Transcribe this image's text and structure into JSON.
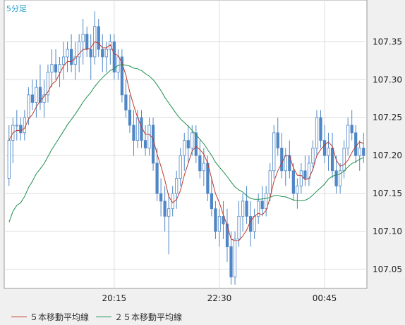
{
  "chart_data": {
    "type": "candlestick",
    "timeframe_label": "5分足",
    "ylim": [
      107.025,
      107.405
    ],
    "yticks": [
      "107.35",
      "107.30",
      "107.25",
      "107.20",
      "107.15",
      "107.10",
      "107.05"
    ],
    "xticks": [
      "20:15",
      "22:30",
      "00:45"
    ],
    "grid": true,
    "legend": [
      {
        "label": "５本移動平均線",
        "color": "#c0392b"
      },
      {
        "label": "２５本移動平均線",
        "color": "#1e8f4e"
      }
    ],
    "colors": {
      "up": "#ffffff",
      "down": "#4f86c6",
      "outline": "#4f86c6"
    },
    "candles": [
      [
        107.17,
        107.24,
        107.16,
        107.22
      ],
      [
        107.22,
        107.25,
        107.19,
        107.24
      ],
      [
        107.24,
        107.26,
        107.22,
        107.24
      ],
      [
        107.24,
        107.25,
        107.22,
        107.23
      ],
      [
        107.23,
        107.26,
        107.22,
        107.25
      ],
      [
        107.25,
        107.29,
        107.24,
        107.28
      ],
      [
        107.28,
        107.3,
        107.26,
        107.27
      ],
      [
        107.27,
        107.3,
        107.25,
        107.29
      ],
      [
        107.29,
        107.32,
        107.26,
        107.27
      ],
      [
        107.27,
        107.3,
        107.25,
        107.28
      ],
      [
        107.28,
        107.32,
        107.27,
        107.31
      ],
      [
        107.31,
        107.34,
        107.29,
        107.32
      ],
      [
        107.32,
        107.34,
        107.3,
        107.31
      ],
      [
        107.31,
        107.33,
        107.29,
        107.32
      ],
      [
        107.32,
        107.35,
        107.3,
        107.33
      ],
      [
        107.33,
        107.35,
        107.31,
        107.34
      ],
      [
        107.34,
        107.36,
        107.31,
        107.32
      ],
      [
        107.32,
        107.35,
        107.3,
        107.33
      ],
      [
        107.33,
        107.36,
        107.31,
        107.35
      ],
      [
        107.35,
        107.38,
        107.32,
        107.36
      ],
      [
        107.36,
        107.37,
        107.33,
        107.34
      ],
      [
        107.34,
        107.36,
        107.3,
        107.33
      ],
      [
        107.33,
        107.39,
        107.32,
        107.37
      ],
      [
        107.37,
        107.38,
        107.33,
        107.34
      ],
      [
        107.34,
        107.36,
        107.31,
        107.33
      ],
      [
        107.33,
        107.35,
        107.31,
        107.34
      ],
      [
        107.34,
        107.36,
        107.32,
        107.35
      ],
      [
        107.35,
        107.36,
        107.3,
        107.31
      ],
      [
        107.31,
        107.34,
        107.3,
        107.33
      ],
      [
        107.33,
        107.34,
        107.27,
        107.28
      ],
      [
        107.28,
        107.3,
        107.25,
        107.26
      ],
      [
        107.26,
        107.28,
        107.23,
        107.24
      ],
      [
        107.24,
        107.26,
        107.2,
        107.22
      ],
      [
        107.22,
        107.26,
        107.21,
        107.25
      ],
      [
        107.25,
        107.26,
        107.21,
        107.22
      ],
      [
        107.22,
        107.24,
        107.2,
        107.21
      ],
      [
        107.21,
        107.25,
        107.2,
        107.24
      ],
      [
        107.24,
        107.25,
        107.18,
        107.19
      ],
      [
        107.19,
        107.21,
        107.14,
        107.15
      ],
      [
        107.15,
        107.17,
        107.12,
        107.14
      ],
      [
        107.14,
        107.16,
        107.1,
        107.12
      ],
      [
        107.12,
        107.15,
        107.07,
        107.13
      ],
      [
        107.13,
        107.16,
        107.12,
        107.15
      ],
      [
        107.15,
        107.18,
        107.13,
        107.17
      ],
      [
        107.17,
        107.21,
        107.16,
        107.2
      ],
      [
        107.2,
        107.23,
        107.18,
        107.22
      ],
      [
        107.22,
        107.24,
        107.19,
        107.21
      ],
      [
        107.21,
        107.24,
        107.2,
        107.23
      ],
      [
        107.23,
        107.24,
        107.19,
        107.2
      ],
      [
        107.2,
        107.22,
        107.17,
        107.18
      ],
      [
        107.18,
        107.21,
        107.16,
        107.19
      ],
      [
        107.19,
        107.2,
        107.14,
        107.15
      ],
      [
        107.15,
        107.17,
        107.12,
        107.13
      ],
      [
        107.13,
        107.14,
        107.09,
        107.1
      ],
      [
        107.1,
        107.13,
        107.08,
        107.12
      ],
      [
        107.12,
        107.14,
        107.09,
        107.11
      ],
      [
        107.11,
        107.13,
        107.06,
        107.08
      ],
      [
        107.08,
        107.1,
        107.03,
        107.04
      ],
      [
        107.04,
        107.1,
        107.03,
        107.09
      ],
      [
        107.09,
        107.14,
        107.08,
        107.12
      ],
      [
        107.12,
        107.15,
        107.1,
        107.14
      ],
      [
        107.14,
        107.16,
        107.11,
        107.12
      ],
      [
        107.12,
        107.14,
        107.08,
        107.1
      ],
      [
        107.1,
        107.13,
        107.09,
        107.12
      ],
      [
        107.12,
        107.15,
        107.11,
        107.14
      ],
      [
        107.14,
        107.16,
        107.12,
        107.13
      ],
      [
        107.13,
        107.16,
        107.12,
        107.15
      ],
      [
        107.15,
        107.19,
        107.14,
        107.18
      ],
      [
        107.18,
        107.24,
        107.17,
        107.23
      ],
      [
        107.23,
        107.25,
        107.2,
        107.21
      ],
      [
        107.21,
        107.23,
        107.17,
        107.18
      ],
      [
        107.18,
        107.21,
        107.16,
        107.2
      ],
      [
        107.2,
        107.22,
        107.17,
        107.18
      ],
      [
        107.18,
        107.19,
        107.14,
        107.15
      ],
      [
        107.15,
        107.17,
        107.13,
        107.16
      ],
      [
        107.16,
        107.19,
        107.15,
        107.18
      ],
      [
        107.18,
        107.2,
        107.16,
        107.17
      ],
      [
        107.17,
        107.2,
        107.16,
        107.19
      ],
      [
        107.19,
        107.22,
        107.18,
        107.21
      ],
      [
        107.21,
        107.26,
        107.2,
        107.25
      ],
      [
        107.25,
        107.26,
        107.21,
        107.22
      ],
      [
        107.22,
        107.24,
        107.19,
        107.2
      ],
      [
        107.2,
        107.23,
        107.18,
        107.21
      ],
      [
        107.21,
        107.23,
        107.17,
        107.18
      ],
      [
        107.18,
        107.2,
        107.15,
        107.16
      ],
      [
        107.16,
        107.19,
        107.15,
        107.18
      ],
      [
        107.18,
        107.22,
        107.17,
        107.21
      ],
      [
        107.21,
        107.25,
        107.2,
        107.24
      ],
      [
        107.24,
        107.26,
        107.22,
        107.23
      ],
      [
        107.23,
        107.24,
        107.19,
        107.2
      ],
      [
        107.2,
        107.22,
        107.18,
        107.21
      ],
      [
        107.21,
        107.23,
        107.19,
        107.2
      ]
    ]
  }
}
